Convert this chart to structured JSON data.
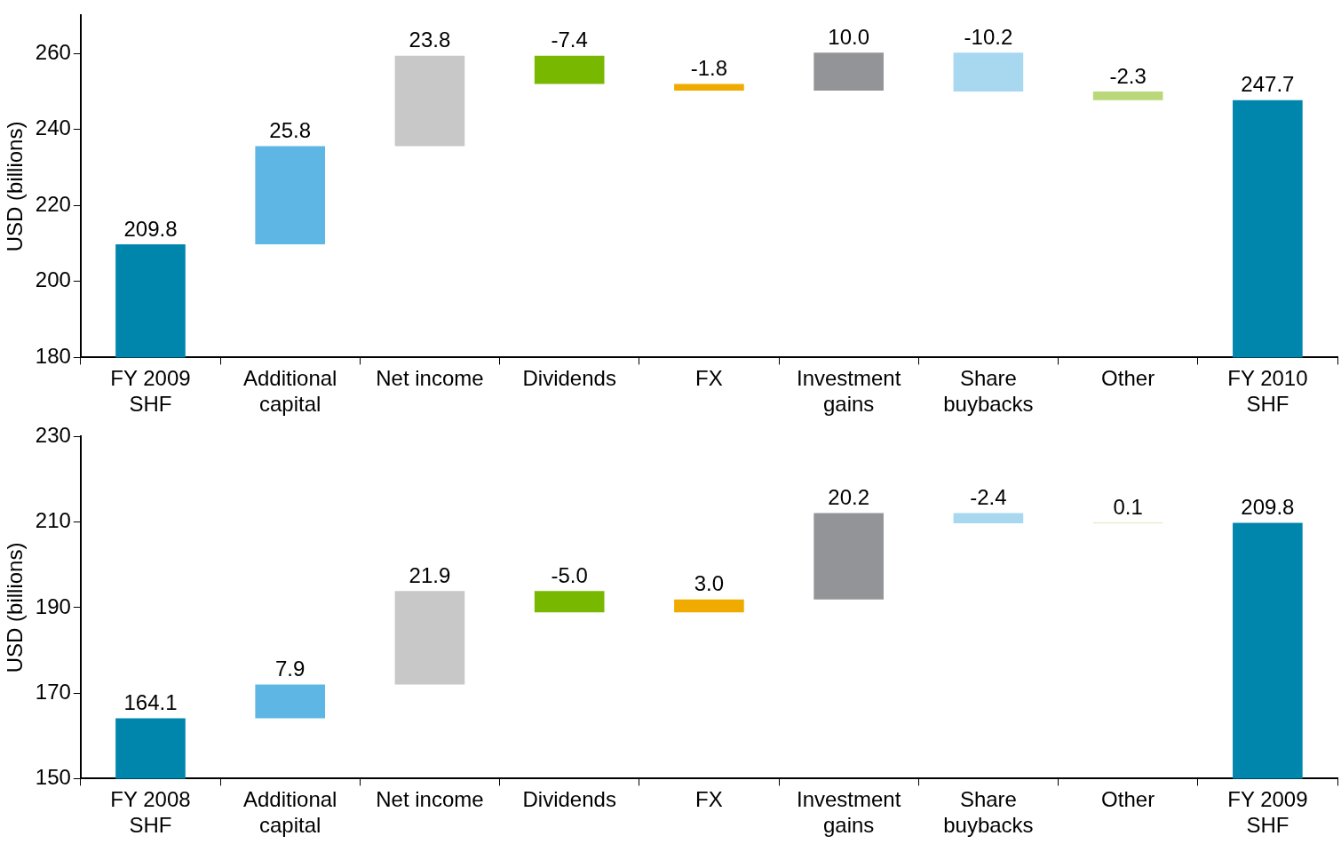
{
  "chart_data": [
    {
      "type": "bar",
      "ylabel": "USD (billions)",
      "categories": [
        "FY 2009 SHF",
        "Additional capital",
        "Net income",
        "Dividends",
        "FX",
        "Investment gains",
        "Share buybacks",
        "Other",
        "FY 2010 SHF"
      ],
      "values": [
        209.8,
        25.8,
        23.8,
        -7.4,
        -1.8,
        10.0,
        -10.2,
        -2.3,
        247.7
      ],
      "base": [
        null,
        209.8,
        235.6,
        259.4,
        252.0,
        250.2,
        260.2,
        250.0,
        null
      ],
      "value_labels": [
        "209.8",
        "25.8",
        "23.8",
        "-7.4",
        "-1.8",
        "10.0",
        "-10.2",
        "-2.3",
        "247.7"
      ],
      "colors": [
        "#0085ad",
        "#5eb6e4",
        "#c8c8c8",
        "#78b800",
        "#f0ab00",
        "#929497",
        "#a8d8f0",
        "#b8d87a",
        "#0085ad"
      ],
      "ylim": [
        180,
        270
      ],
      "yticks": [
        180,
        200,
        220,
        240,
        260
      ],
      "grid": false,
      "legend": false
    },
    {
      "type": "bar",
      "ylabel": "USD (billions)",
      "categories": [
        "FY 2008 SHF",
        "Additional capital",
        "Net income",
        "Dividends",
        "FX",
        "Investment gains",
        "Share buybacks",
        "Other",
        "FY 2009 SHF"
      ],
      "values": [
        164.1,
        7.9,
        21.9,
        -5.0,
        3.0,
        20.2,
        -2.4,
        0.1,
        209.8
      ],
      "base": [
        null,
        164.1,
        172.0,
        193.9,
        188.9,
        191.9,
        212.1,
        209.7,
        null
      ],
      "value_labels": [
        "164.1",
        "7.9",
        "21.9",
        "-5.0",
        "3.0",
        "20.2",
        "-2.4",
        "0.1",
        "209.8"
      ],
      "colors": [
        "#0085ad",
        "#5eb6e4",
        "#c8c8c8",
        "#78b800",
        "#f0ab00",
        "#929497",
        "#a8d8f0",
        "#b8d87a",
        "#0085ad"
      ],
      "ylim": [
        150,
        230
      ],
      "yticks": [
        150,
        170,
        190,
        210,
        230
      ],
      "grid": false,
      "legend": false
    }
  ]
}
